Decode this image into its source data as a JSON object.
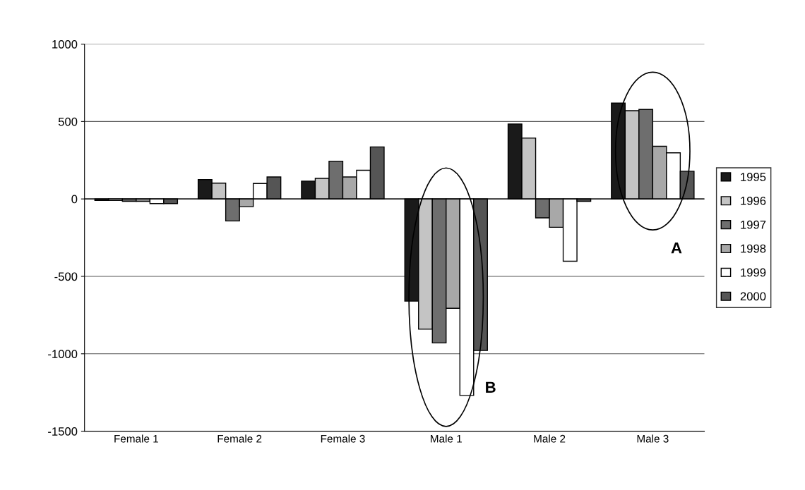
{
  "chart_data": {
    "type": "bar",
    "categories": [
      "Female 1",
      "Female 2",
      "Female 3",
      "Male 1",
      "Male 2",
      "Male 3"
    ],
    "series": [
      {
        "name": "1995",
        "color": "#1a1a1a",
        "values": [
          -10,
          125,
          115,
          -660,
          484,
          619
        ]
      },
      {
        "name": "1996",
        "color": "#c4c4c4",
        "values": [
          -10,
          102,
          133,
          -841,
          393,
          570
        ]
      },
      {
        "name": "1997",
        "color": "#6e6e6e",
        "values": [
          -15,
          -142,
          244,
          -930,
          -122,
          578
        ]
      },
      {
        "name": "1998",
        "color": "#a8a8a8",
        "values": [
          -15,
          -50,
          142,
          -706,
          -183,
          340
        ]
      },
      {
        "name": "1999",
        "color": "#ffffff",
        "values": [
          -30,
          100,
          185,
          -1269,
          -402,
          298
        ]
      },
      {
        "name": "2000",
        "color": "#555555",
        "values": [
          -30,
          142,
          336,
          -979,
          -15,
          179
        ]
      }
    ],
    "ylim": [
      -1500,
      1000
    ],
    "yticks": [
      -1500,
      -1000,
      -500,
      0,
      500,
      1000
    ],
    "grid": "y",
    "legend": "right",
    "annotations": [
      "A",
      "B"
    ]
  }
}
